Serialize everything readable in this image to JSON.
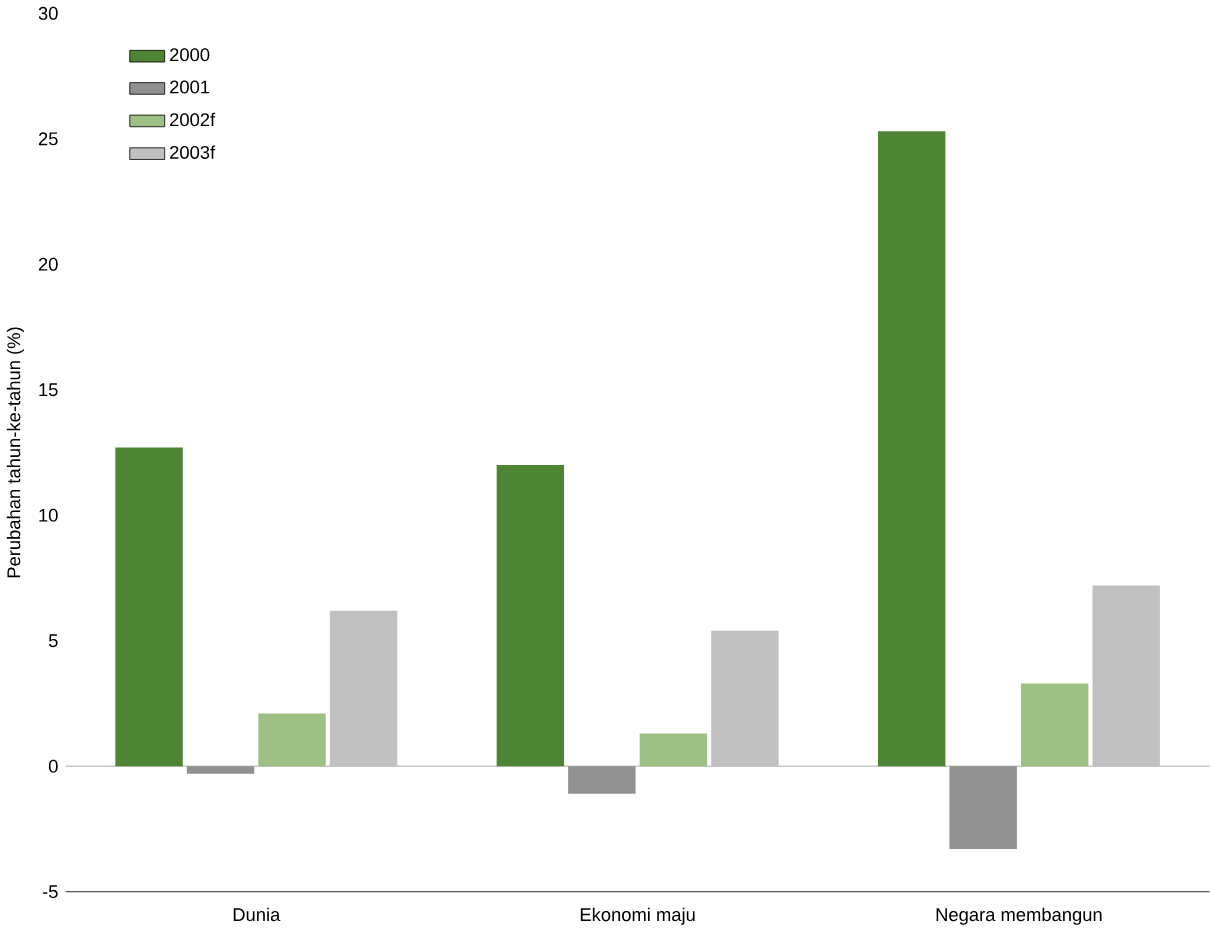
{
  "chart_data": {
    "type": "bar",
    "ylabel": "Perubahan tahun-ke-tahun (%)",
    "categories": [
      "Dunia",
      "Ekonomi maju",
      "Negara membangun"
    ],
    "series": [
      {
        "name": "2000",
        "color": "#4d8534",
        "values": [
          12.7,
          12.0,
          25.3
        ]
      },
      {
        "name": "2001",
        "color": "#909090",
        "values": [
          -0.3,
          -1.1,
          -3.3
        ]
      },
      {
        "name": "2002f",
        "color": "#9dc184",
        "values": [
          2.1,
          1.3,
          3.3
        ]
      },
      {
        "name": "2003f",
        "color": "#c0c0c0",
        "values": [
          6.2,
          5.4,
          7.2
        ]
      }
    ],
    "ylim": [
      -5,
      30
    ],
    "yticks": [
      -5,
      0,
      5,
      10,
      15,
      20,
      25,
      30
    ],
    "ref_lines": [
      {
        "axis": "y",
        "value": 0,
        "color": "#808080"
      }
    ],
    "legend": "top left"
  }
}
